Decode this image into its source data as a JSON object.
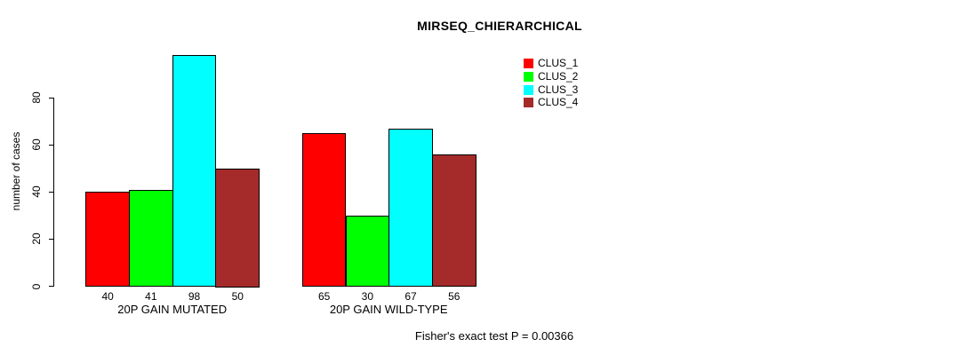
{
  "chart_data": {
    "type": "bar",
    "title": "MIRSEQ_CHIERARCHICAL",
    "ylabel": "number of cases",
    "xlabel": "",
    "ylim": [
      0,
      98
    ],
    "yticks": [
      0,
      20,
      40,
      60,
      80
    ],
    "grid": false,
    "legend_position": "top-right-inside",
    "categories": [
      "20P GAIN MUTATED",
      "20P GAIN WILD-TYPE"
    ],
    "series": [
      {
        "name": "CLUS_1",
        "color": "#ff0000",
        "values": [
          40,
          65
        ]
      },
      {
        "name": "CLUS_2",
        "color": "#00ff00",
        "values": [
          41,
          30
        ]
      },
      {
        "name": "CLUS_3",
        "color": "#00ffff",
        "values": [
          98,
          67
        ]
      },
      {
        "name": "CLUS_4",
        "color": "#a52a2a",
        "values": [
          50,
          56
        ]
      }
    ],
    "show_values_under_bars": true,
    "annotation": "Fisher's exact test P = 0.00366",
    "axis_color": "#000000",
    "text_color": "#000000",
    "background": "#ffffff"
  }
}
